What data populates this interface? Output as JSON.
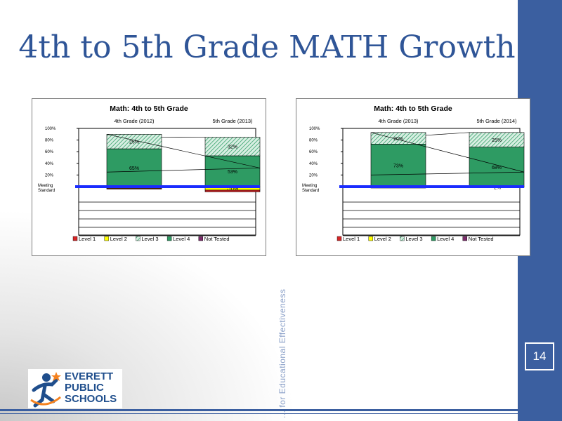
{
  "slide": {
    "title": "4th to 5th Grade MATH Growth",
    "page_number": "14",
    "vertical_text": "... for Educational Effectiveness",
    "logo": {
      "line1": "EVERETT",
      "line2": "PUBLIC",
      "line3": "SCHOOLS",
      "accent_color": "#f5821f"
    },
    "colors": {
      "sidebar": "#3b5fa0",
      "title": "#2f5597"
    }
  },
  "chart_data": [
    {
      "type": "bar",
      "title": "Math: 4th to 5th Grade",
      "categories": [
        "4th Grade (2012)",
        "5th Grade (2013)"
      ],
      "yticks": [
        "100%",
        "80%",
        "60%",
        "40%",
        "20%"
      ],
      "baseline_label": [
        "Meeting",
        "Standard"
      ],
      "ylim": [
        -50,
        100
      ],
      "series": [
        {
          "name": "Level 4",
          "color": "#2e9b63",
          "values": [
            65,
            53
          ],
          "labels": [
            "65%",
            "53%"
          ]
        },
        {
          "name": "Level 3",
          "color": "#a6d9c0",
          "values": [
            25,
            32
          ],
          "labels": [
            "25%",
            "32%"
          ]
        },
        {
          "name": "Level 2",
          "color": "#ffff00",
          "values": [
            -5,
            -10
          ],
          "labels": [
            "",
            "-10%"
          ]
        },
        {
          "name": "Level 1",
          "color": "#d62728",
          "values": [
            -2,
            -5
          ],
          "labels": [
            "",
            ""
          ]
        },
        {
          "name": "Not Tested",
          "color": "#7b2c6a",
          "values": [
            0,
            0
          ],
          "labels": [
            "",
            ""
          ]
        }
      ],
      "legend": [
        "Level 1",
        "Level 2",
        "Level 3",
        "Level 4",
        "Not Tested"
      ]
    },
    {
      "type": "bar",
      "title": "Math: 4th to 5th Grade",
      "categories": [
        "4th Grade (2013)",
        "5th Grade (2014)"
      ],
      "yticks": [
        "100%",
        "80%",
        "60%",
        "40%",
        "20%"
      ],
      "baseline_label": [
        "Meeting",
        "Standard"
      ],
      "ylim": [
        -50,
        100
      ],
      "series": [
        {
          "name": "Level 4",
          "color": "#2e9b63",
          "values": [
            73,
            68
          ],
          "labels": [
            "73%",
            "68%"
          ]
        },
        {
          "name": "Level 3",
          "color": "#a6d9c0",
          "values": [
            20,
            25
          ],
          "labels": [
            "20%",
            "25%"
          ]
        },
        {
          "name": "Level 2",
          "color": "#ffff00",
          "values": [
            -3,
            -2
          ],
          "labels": [
            "",
            "-2%"
          ]
        },
        {
          "name": "Level 1",
          "color": "#d62728",
          "values": [
            -1,
            0
          ],
          "labels": [
            "",
            ""
          ]
        },
        {
          "name": "Not Tested",
          "color": "#7b2c6a",
          "values": [
            0,
            0
          ],
          "labels": [
            "",
            ""
          ]
        }
      ],
      "legend": [
        "Level 1",
        "Level 2",
        "Level 3",
        "Level 4",
        "Not Tested"
      ]
    }
  ]
}
